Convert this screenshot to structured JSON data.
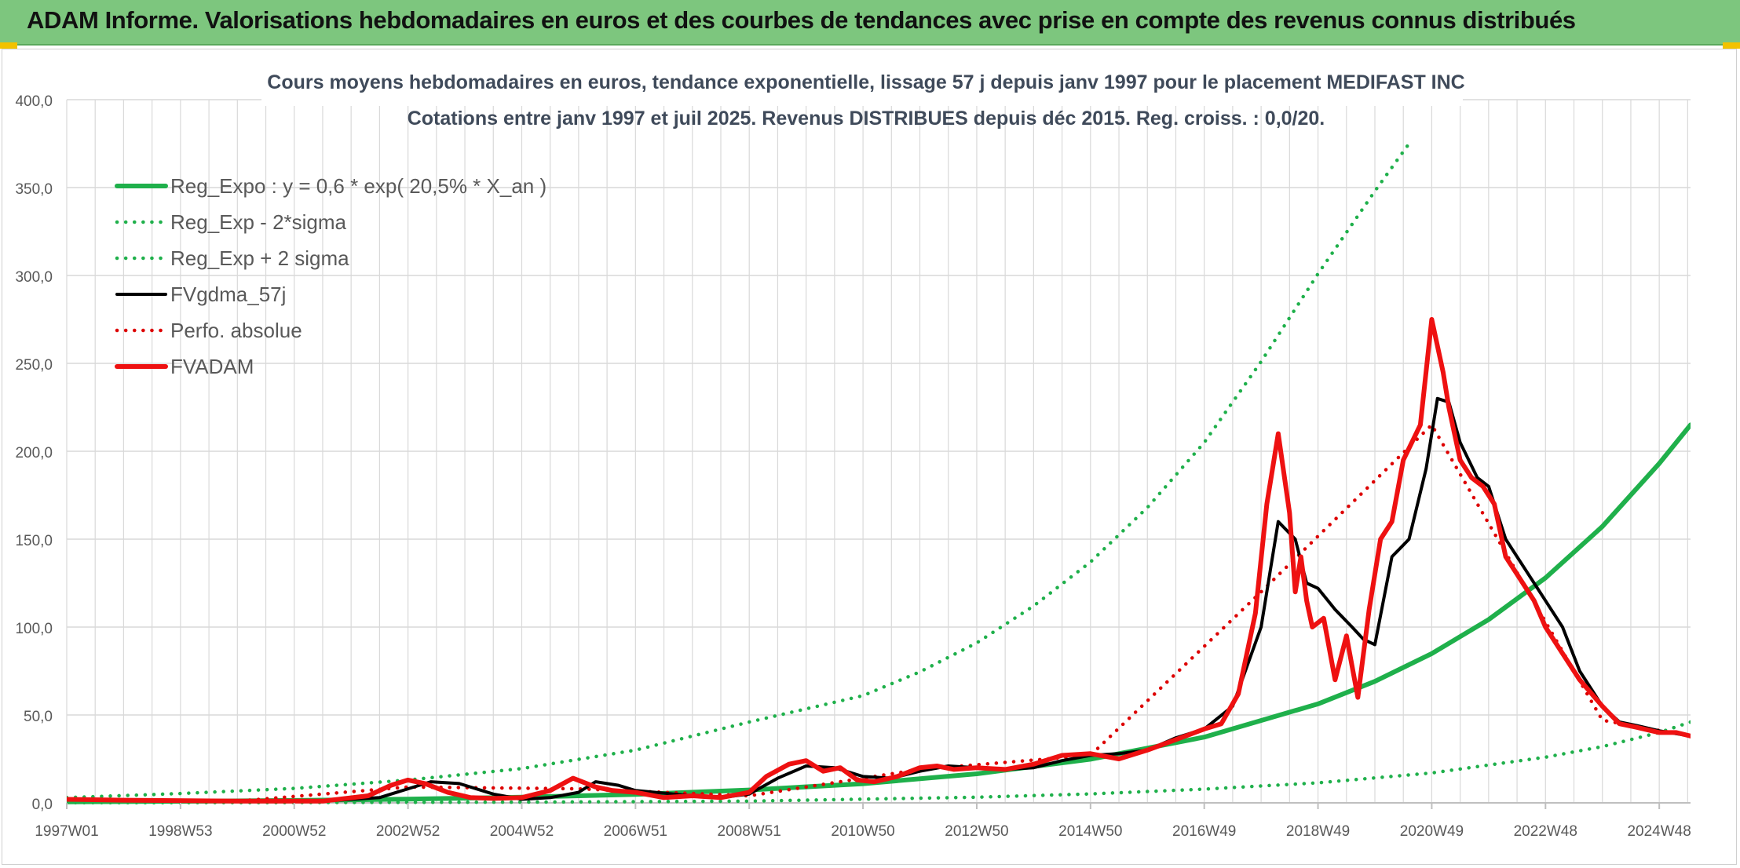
{
  "header": {
    "title": "ADAM Informe. Valorisations hebdomadaires en euros et des courbes de tendances avec prise en compte des revenus connus distribués"
  },
  "colors": {
    "header_bg": "#7dc67e",
    "reg_green": "#1fb04b",
    "adam_red": "#ee1111",
    "ma_black": "#000000",
    "perf_red": "#dd0000",
    "grid": "#d9d9d9"
  },
  "chart_data": {
    "type": "line",
    "title": "Cours moyens hebdomadaires en euros, tendance exponentielle, lissage 57 j depuis janv 1997 pour le placement MEDIFAST INC",
    "subtitle": "Cotations entre janv 1997 et juil 2025. Revenus DISTRIBUES depuis déc 2015. Reg. croiss. : 0,0/20.",
    "xlabel": "",
    "ylabel": "",
    "ylim": [
      0,
      400
    ],
    "xlim": [
      1997.0,
      2025.55
    ],
    "y_ticks": [
      "0,0",
      "50,0",
      "100,0",
      "150,0",
      "200,0",
      "250,0",
      "300,0",
      "350,0",
      "400,0"
    ],
    "x_ticks": [
      {
        "label": "1997W01",
        "x": 1997.0
      },
      {
        "label": "1998W53",
        "x": 1999.0
      },
      {
        "label": "2000W52",
        "x": 2001.0
      },
      {
        "label": "2002W52",
        "x": 2003.0
      },
      {
        "label": "2004W52",
        "x": 2005.0
      },
      {
        "label": "2006W51",
        "x": 2007.0
      },
      {
        "label": "2008W51",
        "x": 2009.0
      },
      {
        "label": "2010W50",
        "x": 2011.0
      },
      {
        "label": "2012W50",
        "x": 2013.0
      },
      {
        "label": "2014W50",
        "x": 2015.0
      },
      {
        "label": "2016W49",
        "x": 2017.0
      },
      {
        "label": "2018W49",
        "x": 2019.0
      },
      {
        "label": "2020W49",
        "x": 2021.0
      },
      {
        "label": "2022W48",
        "x": 2023.0
      },
      {
        "label": "2024W48",
        "x": 2025.0
      }
    ],
    "grid": true,
    "legend_position": "top-left",
    "series": [
      {
        "name": "Reg_Expo : y = 0,6 * exp( 20,5% *  X_an )",
        "style": "solid-thick",
        "color": "#1fb04b",
        "x": [
          1997,
          1999,
          2001,
          2003,
          2005,
          2007,
          2009,
          2011,
          2013,
          2015,
          2017,
          2019,
          2020,
          2021,
          2022,
          2023,
          2024,
          2025,
          2025.55
        ],
        "values": [
          0.6,
          0.9,
          1.4,
          2.1,
          3.2,
          4.8,
          7.3,
          10.9,
          16.5,
          24.8,
          37.4,
          56.3,
          69.1,
          84.9,
          104.3,
          128.0,
          157.2,
          193.1,
          215.0
        ]
      },
      {
        "name": "Reg_Exp - 2*sigma",
        "style": "dotted",
        "color": "#1fb04b",
        "x": [
          1997,
          2001,
          2005,
          2009,
          2013,
          2015,
          2017,
          2019,
          2021,
          2022,
          2023,
          2024,
          2025,
          2025.55
        ],
        "values": [
          0.1,
          0.2,
          0.4,
          1.0,
          3.2,
          5.1,
          7.8,
          11.4,
          17.0,
          21.5,
          26.0,
          32.0,
          40.0,
          46.0
        ]
      },
      {
        "name": "Reg_Exp + 2 sigma",
        "style": "dotted",
        "color": "#1fb04b",
        "x": [
          1997,
          1999,
          2001,
          2003,
          2005,
          2007,
          2009,
          2011,
          2012,
          2013,
          2014,
          2015,
          2016,
          2017,
          2018,
          2019,
          2020,
          2020.6
        ],
        "values": [
          3.0,
          5.3,
          8.2,
          13.0,
          19.5,
          30.0,
          46.0,
          61.0,
          74.5,
          91.0,
          112.0,
          137.0,
          168.0,
          205.0,
          251.0,
          301.0,
          348.0,
          375.0
        ]
      },
      {
        "name": "FVgdma_57j",
        "style": "solid",
        "color": "#000000",
        "x": [
          1997,
          1998,
          2000,
          2001.5,
          2002.5,
          2003,
          2003.4,
          2003.9,
          2004.5,
          2005,
          2005.5,
          2006,
          2006.3,
          2006.7,
          2007,
          2008,
          2008.5,
          2009,
          2009.5,
          2010,
          2010.5,
          2011,
          2011.5,
          2012,
          2012.5,
          2013,
          2013.5,
          2014,
          2014.5,
          2015,
          2015.5,
          2016,
          2016.5,
          2017,
          2017.5,
          2018,
          2018.3,
          2018.6,
          2018.8,
          2019,
          2019.3,
          2019.6,
          2019.8,
          2020,
          2020.3,
          2020.6,
          2020.9,
          2021.1,
          2021.3,
          2021.5,
          2021.8,
          2022,
          2022.3,
          2022.6,
          2023,
          2023.3,
          2023.6,
          2024,
          2024.3,
          2024.6,
          2025,
          2025.55
        ],
        "values": [
          2,
          1.5,
          1,
          1,
          3,
          8,
          12,
          11,
          5,
          2,
          3,
          6,
          12,
          10,
          7,
          4,
          3,
          5,
          14,
          21,
          20,
          15,
          14,
          18,
          21,
          20,
          19,
          20,
          24,
          27,
          28,
          30,
          37,
          42,
          55,
          100,
          160,
          150,
          125,
          122,
          110,
          100,
          93,
          90,
          140,
          150,
          190,
          230,
          228,
          205,
          185,
          180,
          150,
          135,
          115,
          100,
          75,
          55,
          46,
          44,
          41,
          38
        ]
      },
      {
        "name": "Perfo. absolue",
        "style": "dotted",
        "color": "#dd0000",
        "x": [
          1997,
          2000,
          2003,
          2006,
          2009,
          2012,
          2015,
          2018,
          2021,
          2024,
          2025.55
        ],
        "values": [
          2,
          1,
          9,
          8,
          4,
          19,
          27,
          120,
          215,
          47,
          38
        ]
      },
      {
        "name": "FVADAM",
        "style": "solid-thick",
        "color": "#ee1111",
        "x": [
          1997,
          1998,
          2000,
          2001.5,
          2002.3,
          2002.7,
          2003,
          2003.3,
          2003.7,
          2004.1,
          2004.5,
          2005,
          2005.5,
          2005.9,
          2006.3,
          2006.6,
          2007,
          2007.5,
          2008,
          2008.5,
          2009,
          2009.3,
          2009.7,
          2010,
          2010.3,
          2010.6,
          2010.9,
          2011.2,
          2011.6,
          2012,
          2012.3,
          2012.6,
          2013,
          2013.5,
          2014,
          2014.5,
          2015,
          2015.5,
          2016,
          2016.5,
          2017,
          2017.3,
          2017.6,
          2017.9,
          2018.1,
          2018.3,
          2018.5,
          2018.6,
          2018.7,
          2018.8,
          2018.9,
          2019.1,
          2019.3,
          2019.5,
          2019.7,
          2019.9,
          2020.1,
          2020.3,
          2020.5,
          2020.8,
          2021,
          2021.2,
          2021.3,
          2021.4,
          2021.5,
          2021.7,
          2021.9,
          2022.1,
          2022.3,
          2022.5,
          2022.8,
          2023,
          2023.3,
          2023.6,
          2024,
          2024.3,
          2024.6,
          2025,
          2025.3,
          2025.55
        ],
        "values": [
          2,
          1.5,
          1,
          1,
          4,
          10,
          13,
          11,
          6,
          3,
          2.5,
          3,
          7,
          14,
          9,
          7,
          6,
          3,
          4,
          3,
          6,
          15,
          22,
          24,
          18,
          20,
          13,
          12,
          15,
          20,
          21,
          19,
          20,
          19,
          22,
          27,
          28,
          25,
          30,
          36,
          42,
          45,
          62,
          108,
          170,
          210,
          165,
          120,
          140,
          115,
          100,
          105,
          70,
          95,
          60,
          110,
          150,
          160,
          195,
          215,
          275,
          245,
          225,
          210,
          195,
          185,
          180,
          170,
          140,
          130,
          115,
          100,
          85,
          70,
          55,
          45,
          43,
          40,
          40,
          38
        ]
      }
    ]
  }
}
